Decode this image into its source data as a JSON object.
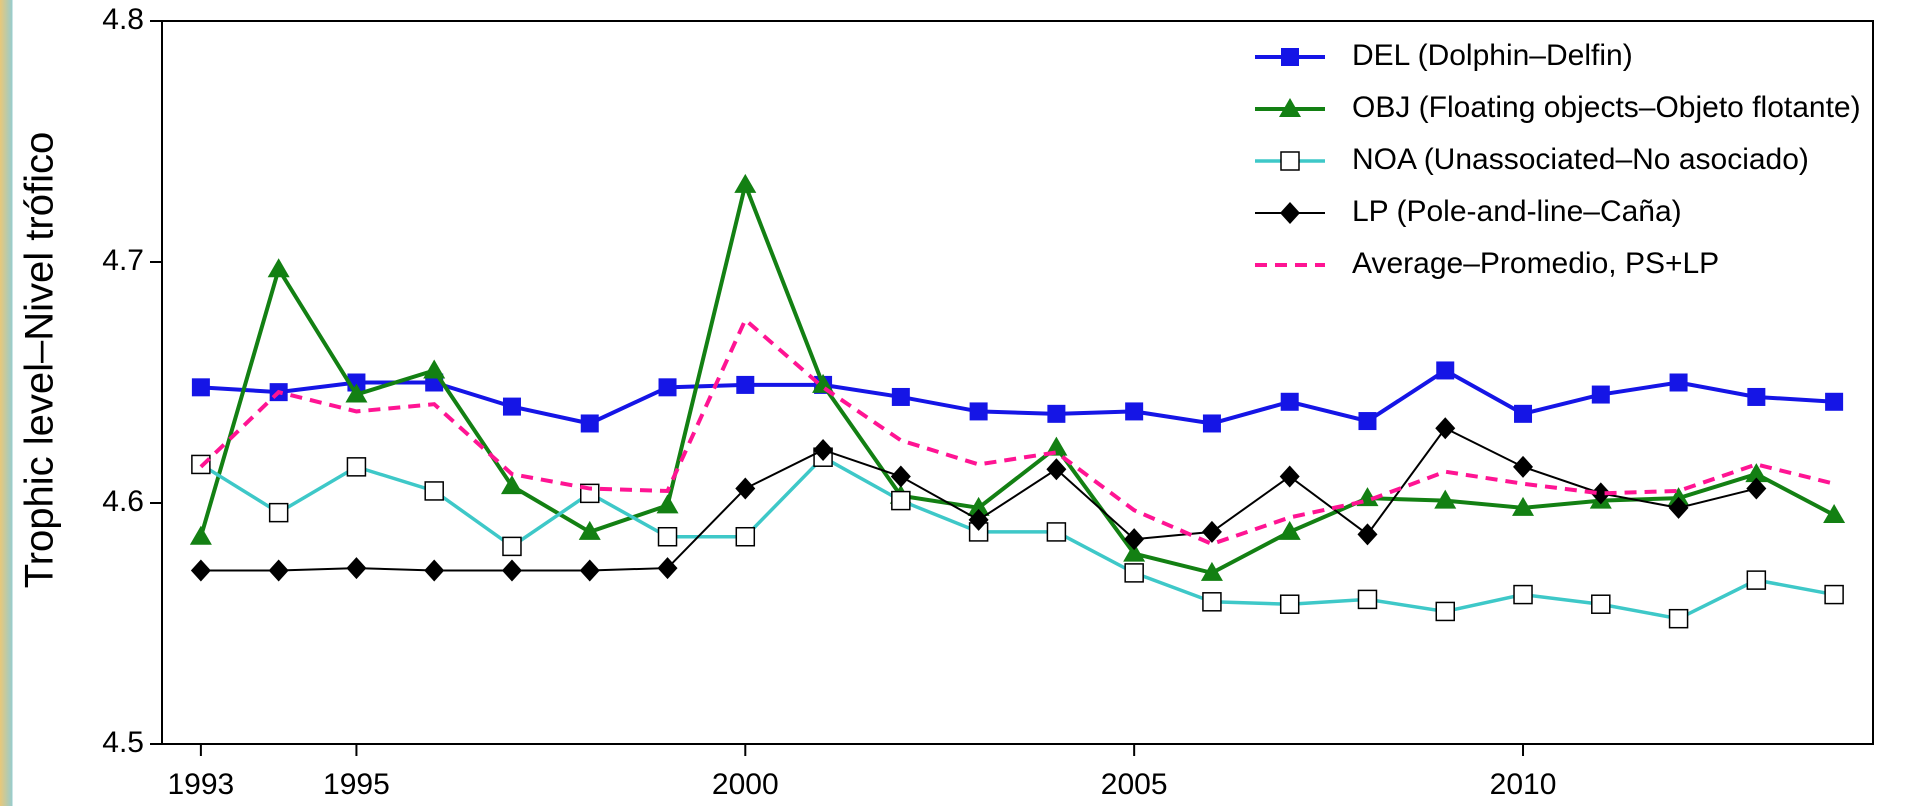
{
  "chart_data": {
    "type": "line",
    "y_label": "Trophic level–Nivel trófico",
    "x": [
      1993,
      1994,
      1995,
      1996,
      1997,
      1998,
      1999,
      2000,
      2001,
      2002,
      2003,
      2004,
      2005,
      2006,
      2007,
      2008,
      2009,
      2010,
      2011,
      2012,
      2013,
      2014
    ],
    "xlim": [
      1992.5,
      2014.5
    ],
    "xticks": [
      1993,
      1995,
      2000,
      2005,
      2010
    ],
    "ylim": [
      4.5,
      4.8
    ],
    "yticks": [
      4.5,
      4.6,
      4.7,
      4.8
    ],
    "legend": "upper right",
    "series": [
      {
        "name": "DEL (Dolphin–Delfin)",
        "color": "#1515e6",
        "marker": "square",
        "linestyle": "solid",
        "values": [
          4.648,
          4.646,
          4.65,
          4.65,
          4.64,
          4.633,
          4.648,
          4.649,
          4.649,
          4.644,
          4.638,
          4.637,
          4.638,
          4.633,
          4.642,
          4.634,
          4.655,
          4.637,
          4.645,
          4.65,
          4.644,
          4.642
        ]
      },
      {
        "name": "OBJ (Floating objects–Objeto flotante)",
        "color": "#138013",
        "marker": "triangle",
        "linestyle": "solid",
        "values": [
          4.586,
          4.697,
          4.645,
          4.655,
          4.607,
          4.588,
          4.599,
          4.732,
          4.649,
          4.603,
          4.598,
          4.623,
          4.579,
          4.571,
          4.588,
          4.602,
          4.601,
          4.598,
          4.601,
          4.602,
          4.612,
          4.595
        ]
      },
      {
        "name": "NOA (Unassociated–No asociado)",
        "color": "#3ec8c8",
        "marker": "open-square",
        "linestyle": "solid",
        "values": [
          4.616,
          4.596,
          4.615,
          4.605,
          4.582,
          4.604,
          4.586,
          4.586,
          4.619,
          4.601,
          4.588,
          4.588,
          4.571,
          4.559,
          4.558,
          4.56,
          4.555,
          4.562,
          4.558,
          4.552,
          4.568,
          4.562
        ]
      },
      {
        "name": "LP (Pole-and-line–Caña)",
        "color": "#000000",
        "marker": "diamond",
        "linestyle": "solid",
        "values": [
          4.572,
          4.572,
          4.573,
          4.572,
          4.572,
          4.572,
          4.573,
          4.606,
          4.622,
          4.611,
          4.593,
          4.614,
          4.585,
          4.588,
          4.611,
          4.587,
          4.631,
          4.615,
          4.604,
          4.598,
          4.606,
          null
        ]
      },
      {
        "name": "Average–Promedio, PS+LP",
        "color": "#ff1493",
        "marker": "none",
        "linestyle": "dashed",
        "values": [
          4.615,
          4.646,
          4.638,
          4.641,
          4.612,
          4.606,
          4.605,
          4.676,
          4.648,
          4.626,
          4.616,
          4.621,
          4.597,
          4.583,
          4.594,
          4.601,
          4.613,
          4.608,
          4.604,
          4.605,
          4.616,
          4.608
        ]
      }
    ]
  }
}
